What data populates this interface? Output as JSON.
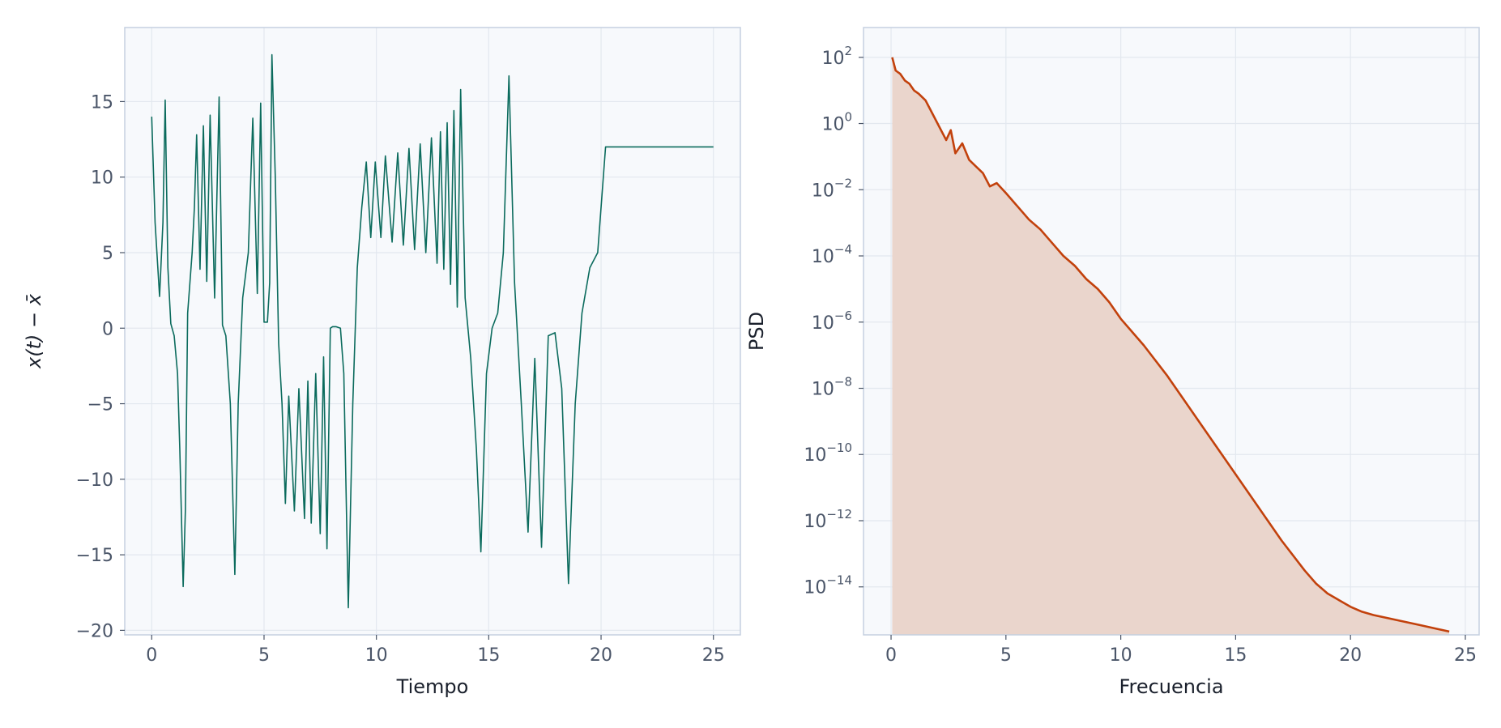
{
  "chart_data": [
    {
      "type": "line",
      "xlabel": "Tiempo",
      "ylabel": "x(t) − x̄",
      "xlim": [
        -1.2,
        26.2
      ],
      "ylim": [
        -20.3,
        19.9
      ],
      "xticks": [
        0,
        5,
        10,
        15,
        20,
        25
      ],
      "yticks": [
        -20,
        -15,
        -10,
        -5,
        0,
        5,
        10,
        15
      ],
      "xtick_labels": [
        "0",
        "5",
        "10",
        "15",
        "20",
        "25"
      ],
      "ytick_labels": [
        "−20",
        "−15",
        "−10",
        "−5",
        "0",
        "5",
        "10",
        "15"
      ],
      "grid": true,
      "color": "#0b6b5d",
      "series": [
        {
          "x": [
            0,
            0.15,
            0.35,
            0.5,
            0.6,
            0.72,
            0.85,
            1.0,
            1.15,
            1.25,
            1.4,
            1.5,
            1.6,
            1.7,
            1.8,
            1.9,
            2.0,
            2.15,
            2.3,
            2.45,
            2.6,
            2.8,
            3.0,
            3.15,
            3.3,
            3.5,
            3.7,
            3.85,
            4.05,
            4.3,
            4.5,
            4.7,
            4.85,
            5.0,
            5.15,
            5.25,
            5.35,
            5.5,
            5.65,
            5.8,
            5.95,
            6.1,
            6.35,
            6.55,
            6.8,
            6.95,
            7.1,
            7.3,
            7.5,
            7.65,
            7.8,
            7.95,
            8.05,
            8.2,
            8.4,
            8.55,
            8.75,
            8.95,
            9.15,
            9.35,
            9.55,
            9.75,
            9.95,
            10.2,
            10.4,
            10.7,
            10.95,
            11.2,
            11.45,
            11.7,
            11.95,
            12.2,
            12.45,
            12.7,
            12.85,
            13.0,
            13.15,
            13.3,
            13.45,
            13.6,
            13.75,
            13.95,
            14.2,
            14.45,
            14.65,
            14.9,
            15.15,
            15.4,
            15.65,
            15.9,
            16.15,
            16.45,
            16.75,
            17.05,
            17.35,
            17.65,
            17.95,
            18.25,
            18.55,
            18.85,
            19.15,
            19.5,
            19.85,
            20.2,
            20.45,
            20.7,
            20.95,
            21.1,
            21.25,
            21.45,
            21.6,
            21.75,
            21.95,
            22.1,
            22.3,
            22.5,
            22.65,
            22.8,
            23.0,
            23.2,
            23.4,
            23.6,
            23.85,
            24.1,
            24.3,
            24.45,
            24.6,
            24.75,
            24.9,
            25.0
          ],
          "y": [
            14.0,
            7.0,
            2.1,
            7.0,
            15.1,
            4.0,
            0.3,
            -0.5,
            -3.0,
            -8.0,
            -17.1,
            -12.0,
            1.0,
            3.0,
            5.0,
            8.0,
            12.8,
            3.9,
            13.4,
            3.1,
            14.1,
            2.0,
            15.3,
            0.2,
            -0.5,
            -5.0,
            -16.3,
            -5.0,
            2.0,
            5.0,
            13.9,
            2.3,
            14.9,
            0.4,
            0.4,
            3.0,
            18.1,
            10.0,
            -1.0,
            -5.0,
            -11.6,
            -4.5,
            -12.1,
            -4.0,
            -12.6,
            -3.5,
            -12.9,
            -3.0,
            -13.6,
            -1.9,
            -14.6,
            0.0,
            0.1,
            0.1,
            0.0,
            -3.0,
            -18.5,
            -5.0,
            4.0,
            8.0,
            11.0,
            6.0,
            11.0,
            6.0,
            11.4,
            5.7,
            11.6,
            5.5,
            11.9,
            5.2,
            12.2,
            5.0,
            12.6,
            4.3,
            13.0,
            3.9,
            13.6,
            2.9,
            14.4,
            1.4,
            15.8,
            2.0,
            -2.0,
            -8.0,
            -14.8,
            -3.0,
            0.0,
            1.0,
            5.0,
            16.7,
            3.0,
            -5.0,
            -13.5,
            -2.0,
            -14.5,
            -0.5,
            -0.3,
            -4.0,
            -16.9,
            -5.0,
            1.0,
            4.0,
            5.0,
            12.0,
            12.0,
            12.0,
            12.0,
            12.0,
            12.0,
            12.0,
            12.0,
            12.0,
            12.0,
            12.0,
            12.0,
            12.0,
            12.0,
            12.0,
            12.0,
            12.0,
            12.0,
            12.0,
            12.0,
            12.0,
            12.0,
            12.0,
            12.0,
            12.0,
            12.0,
            12.0
          ]
        }
      ]
    },
    {
      "type": "area",
      "xlabel": "Frecuencia",
      "ylabel": "PSD",
      "yscale": "log",
      "xlim": [
        -1.2,
        25.6
      ],
      "ylim_log10": [
        -15.45,
        2.9
      ],
      "xticks": [
        0,
        5,
        10,
        15,
        20,
        25
      ],
      "xtick_labels": [
        "0",
        "5",
        "10",
        "15",
        "20",
        "25"
      ],
      "yticks_log10": [
        2,
        0,
        -2,
        -4,
        -6,
        -8,
        -10,
        -12,
        -14
      ],
      "ytick_labels": [
        {
          "base": "10",
          "exp": "2"
        },
        {
          "base": "10",
          "exp": "0"
        },
        {
          "base": "10",
          "exp": "−2"
        },
        {
          "base": "10",
          "exp": "−4"
        },
        {
          "base": "10",
          "exp": "−6"
        },
        {
          "base": "10",
          "exp": "−8"
        },
        {
          "base": "10",
          "exp": "−10"
        },
        {
          "base": "10",
          "exp": "−12"
        },
        {
          "base": "10",
          "exp": "−14"
        }
      ],
      "grid": true,
      "color": "#c2410c",
      "fill_color": "#ead5cc",
      "series": [
        {
          "x": [
            0.05,
            0.2,
            0.4,
            0.6,
            0.8,
            1.0,
            1.2,
            1.5,
            1.8,
            2.1,
            2.4,
            2.6,
            2.8,
            3.1,
            3.4,
            3.7,
            4.0,
            4.3,
            4.6,
            5.0,
            5.5,
            6.0,
            6.5,
            7.0,
            7.5,
            8.0,
            8.5,
            9.0,
            9.5,
            10.0,
            11.0,
            12.0,
            13.0,
            14.0,
            15.0,
            16.0,
            17.0,
            18.0,
            18.5,
            19.0,
            19.5,
            20.0,
            20.5,
            21.0,
            22.0,
            23.0,
            24.3
          ],
          "log10_psd": [
            2.0,
            1.6,
            1.5,
            1.3,
            1.2,
            1.0,
            0.9,
            0.7,
            0.3,
            -0.1,
            -0.5,
            -0.2,
            -0.9,
            -0.6,
            -1.1,
            -1.3,
            -1.5,
            -1.9,
            -1.8,
            -2.1,
            -2.5,
            -2.9,
            -3.2,
            -3.6,
            -4.0,
            -4.3,
            -4.7,
            -5.0,
            -5.4,
            -5.9,
            -6.7,
            -7.6,
            -8.6,
            -9.6,
            -10.6,
            -11.6,
            -12.6,
            -13.5,
            -13.9,
            -14.2,
            -14.4,
            -14.6,
            -14.75,
            -14.85,
            -15.0,
            -15.15,
            -15.35
          ]
        }
      ]
    }
  ]
}
